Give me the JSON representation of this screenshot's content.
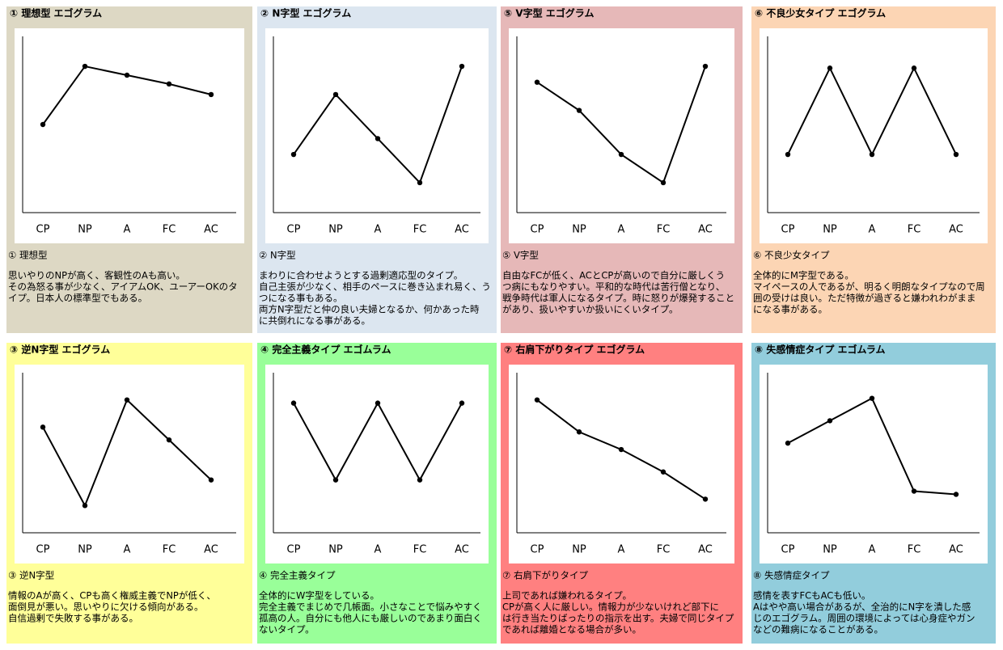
{
  "chart_data": [
    {
      "type": "line",
      "title": "① 理想型 エゴグラム",
      "background": "#ddd8c4",
      "categories": [
        "CP",
        "NP",
        "A",
        "FC",
        "AC"
      ],
      "values": [
        50,
        83,
        78,
        73,
        67
      ],
      "ylim": [
        0,
        100
      ],
      "heading": "① 理想型",
      "description": [
        "思いやりのNPが高く、客観性のAも高い。",
        "その為怒る事が少なく、アイアムOK、ユーアーOKのタ",
        "イプ。日本人の標準型でもある。"
      ]
    },
    {
      "type": "line",
      "title": "② N字型 エゴグラム",
      "background": "#dce6f0",
      "categories": [
        "CP",
        "NP",
        "A",
        "FC",
        "AC"
      ],
      "values": [
        33,
        67,
        42,
        17,
        83
      ],
      "ylim": [
        0,
        100
      ],
      "heading": "② N字型",
      "description": [
        "まわりに合わせようとする過剰適応型のタイプ。",
        "自己主張が少なく、相手のペースに巻き込まれ易く、う",
        "つになる事もある。",
        "両方N字型だと仲の良い夫婦となるか、何かあった時",
        "に共倒れになる事がある。"
      ]
    },
    {
      "type": "line",
      "title": "⑤ V字型 エゴグラム",
      "background": "#e6b8b8",
      "categories": [
        "CP",
        "NP",
        "A",
        "FC",
        "AC"
      ],
      "values": [
        74,
        58,
        33,
        17,
        83
      ],
      "ylim": [
        0,
        100
      ],
      "heading": "⑤ V字型",
      "description": [
        "自由なFCが低く、ACとCPが高いので自分に厳しくう",
        "つ病にもなりやすい。平和的な時代は苦行僧となり、",
        "戦争時代は軍人になるタイプ。時に怒りが爆発すること",
        "があり、扱いやすいか扱いにくいタイプ。"
      ]
    },
    {
      "type": "line",
      "title": "⑥ 不良少女タイプ エゴグラム",
      "background": "#fcd5b4",
      "categories": [
        "CP",
        "NP",
        "A",
        "FC",
        "AC"
      ],
      "values": [
        33,
        82,
        33,
        82,
        33
      ],
      "ylim": [
        0,
        100
      ],
      "heading": "⑥ 不良少女タイプ",
      "description": [
        "全体的にM字型である。",
        "マイペースの人であるが、明るく明朗なタイプなので周",
        "囲の受けは良い。ただ特徴が過ぎると嫌われわがまま",
        "になる事がある。"
      ]
    },
    {
      "type": "line",
      "title": "③ 逆N字型 エゴグラム",
      "background": "#ffff99",
      "categories": [
        "CP",
        "NP",
        "A",
        "FC",
        "AC"
      ],
      "values": [
        66,
        17,
        83,
        58,
        33
      ],
      "ylim": [
        0,
        100
      ],
      "heading": "③ 逆N字型",
      "description": [
        "情報のAが高く、CPも高く権威主義でNPが低く、",
        "面倒見が悪い。思いやりに欠ける傾向がある。",
        "自信過剰で失敗する事がある。"
      ]
    },
    {
      "type": "line",
      "title": "④ 完全主義タイプ エゴムラム",
      "background": "#99ff99",
      "categories": [
        "CP",
        "NP",
        "A",
        "FC",
        "AC"
      ],
      "values": [
        81,
        33,
        81,
        33,
        81
      ],
      "ylim": [
        0,
        100
      ],
      "heading": "④ 完全主義タイプ",
      "description": [
        "全体的にW字型をしている。",
        "完全主義でまじめで几帳面。小さなことで悩みやすく",
        "孤高の人。自分にも他人にも厳しいのであまり面白く",
        "ないタイプ。"
      ]
    },
    {
      "type": "line",
      "title": "⑦ 右肩下がりタイプ エゴグラム",
      "background": "#ff8080",
      "categories": [
        "CP",
        "NP",
        "A",
        "FC",
        "AC"
      ],
      "values": [
        83,
        63,
        52,
        38,
        21
      ],
      "ylim": [
        0,
        100
      ],
      "heading": "⑦ 右肩下がりタイプ",
      "description": [
        "上司であれば嫌われるタイプ。",
        "CPが高く人に厳しい。情報力が少ないけれど部下に",
        "は行き当たりばったりの指示を出す。夫婦で同じタイプ",
        "であれば離婚となる場合が多い。"
      ]
    },
    {
      "type": "line",
      "title": "⑧ 失感情症タイプ エゴムラム",
      "background": "#92cddc",
      "categories": [
        "CP",
        "NP",
        "A",
        "FC",
        "AC"
      ],
      "values": [
        56,
        70,
        84,
        26,
        24
      ],
      "ylim": [
        0,
        100
      ],
      "heading": "⑧ 失感情症タイプ",
      "description": [
        "感情を表すFCもACも低い。",
        "Aはやや高い場合があるが、全治的にN字を潰した感",
        "じのエゴグラム。周囲の環境によっては心身症やガン",
        "などの難病になることがある。"
      ]
    }
  ]
}
